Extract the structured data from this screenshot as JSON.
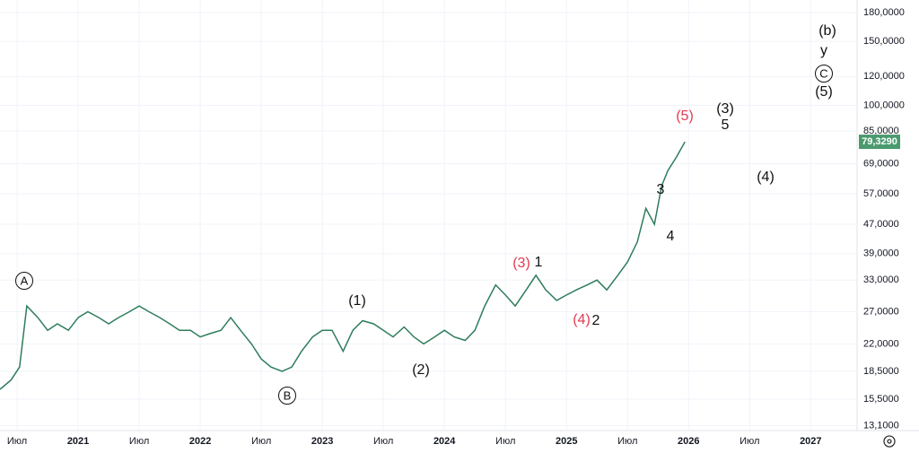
{
  "chart_data": {
    "type": "line",
    "log_scale": true,
    "x": [
      2020.36,
      2020.45,
      2020.52,
      2020.58,
      2020.67,
      2020.75,
      2020.83,
      2020.92,
      2021.0,
      2021.08,
      2021.17,
      2021.25,
      2021.33,
      2021.42,
      2021.5,
      2021.58,
      2021.67,
      2021.75,
      2021.83,
      2021.92,
      2022.0,
      2022.08,
      2022.17,
      2022.25,
      2022.33,
      2022.42,
      2022.5,
      2022.58,
      2022.67,
      2022.75,
      2022.83,
      2022.92,
      2023.0,
      2023.08,
      2023.17,
      2023.25,
      2023.33,
      2023.42,
      2023.5,
      2023.58,
      2023.67,
      2023.75,
      2023.83,
      2023.92,
      2024.0,
      2024.08,
      2024.17,
      2024.25,
      2024.33,
      2024.42,
      2024.5,
      2024.58,
      2024.67,
      2024.75,
      2024.83,
      2024.92,
      2025.0,
      2025.08,
      2025.17,
      2025.25,
      2025.33,
      2025.42,
      2025.5,
      2025.58,
      2025.65,
      2025.72,
      2025.78,
      2025.83,
      2025.9,
      2025.97
    ],
    "values": [
      16.5,
      17.5,
      19,
      28,
      26,
      24,
      25,
      24,
      26,
      27,
      26,
      25,
      26,
      27,
      28,
      27,
      26,
      25,
      24,
      24,
      23,
      23.5,
      24,
      26,
      24,
      22,
      20,
      19,
      18.5,
      19,
      21,
      23,
      24,
      24,
      21,
      24,
      25.5,
      25,
      24,
      23,
      24.5,
      23,
      22,
      23,
      24,
      23,
      22.5,
      24,
      28,
      32,
      30,
      28,
      31,
      34,
      31,
      29,
      30,
      31,
      32,
      33,
      31,
      34,
      37,
      42,
      52,
      47,
      60,
      66,
      72,
      79.329
    ],
    "value_labels": [
      null,
      null,
      null,
      null,
      null,
      null,
      null,
      null,
      null,
      null,
      null,
      null,
      null,
      null,
      null,
      null,
      null,
      null,
      null,
      null,
      null,
      null,
      null,
      null,
      null,
      null,
      null,
      null,
      null,
      null,
      null,
      null,
      null,
      null,
      null,
      null,
      null,
      null,
      null,
      null,
      null,
      null,
      null,
      null,
      null,
      null,
      null,
      null,
      null,
      null,
      null,
      null,
      null,
      null,
      null,
      null,
      null,
      null,
      null,
      null,
      null,
      null,
      null,
      null,
      null,
      null,
      null,
      null,
      null,
      "79,3290"
    ],
    "color": "#2e7d5b",
    "label_color": "#4a9a6e",
    "xlim": [
      2020.36,
      2027.38
    ],
    "xticks": [
      {
        "value": 2020.5,
        "label": "Июл"
      },
      2021,
      {
        "value": 2021.5,
        "label": "Июл"
      },
      2022,
      {
        "value": 2022.5,
        "label": "Июл"
      },
      2023,
      {
        "value": 2023.5,
        "label": "Июл"
      },
      2024,
      {
        "value": 2024.5,
        "label": "Июл"
      },
      2025,
      {
        "value": 2025.5,
        "label": "Июл"
      },
      2026,
      {
        "value": 2026.5,
        "label": "Июл"
      },
      2027
    ],
    "ylim": [
      12.7,
      195
    ],
    "yticks": [
      {
        "value": 180,
        "label": "180,0000"
      },
      {
        "value": 150,
        "label": "150,0000"
      },
      {
        "value": 120,
        "label": "120,0000"
      },
      {
        "value": 100,
        "label": "100,0000"
      },
      {
        "value": 85,
        "label": "85,0000"
      },
      {
        "value": 69,
        "label": "69,0000"
      },
      {
        "value": 57,
        "label": "57,0000"
      },
      {
        "value": 47,
        "label": "47,0000"
      },
      {
        "value": 39,
        "label": "39,0000"
      },
      {
        "value": 33,
        "label": "33,0000"
      },
      {
        "value": 27,
        "label": "27,0000"
      },
      {
        "value": 22,
        "label": "22,0000"
      },
      {
        "value": 18.5,
        "label": "18,5000"
      },
      {
        "value": 15.5,
        "label": "15,5000"
      },
      {
        "value": 13.1,
        "label": "13,1000"
      }
    ],
    "grid": true,
    "annotations": [
      {
        "text": "(b)",
        "color": "#111"
      },
      {
        "text": "y",
        "color": "#111"
      },
      {
        "text": "C",
        "color": "#111",
        "circled": true
      },
      {
        "text": "(5)",
        "color": "#111"
      },
      {
        "text": "(3)",
        "color": "#111"
      },
      {
        "text": "5",
        "color": "#111"
      },
      {
        "text": "(4)",
        "color": "#111"
      },
      {
        "text": "(5)",
        "color": "#e53950"
      },
      {
        "text": "3",
        "color": "#111"
      },
      {
        "text": "4",
        "color": "#111"
      },
      {
        "text": "(3)",
        "color": "#e53950"
      },
      {
        "text": "1",
        "color": "#111"
      },
      {
        "text": "(4)",
        "color": "#e53950"
      },
      {
        "text": "2",
        "color": "#111"
      },
      {
        "text": "(1)",
        "color": "#111"
      },
      {
        "text": "(2)",
        "color": "#111"
      },
      {
        "text": "A",
        "color": "#111",
        "circled": true
      },
      {
        "text": "B",
        "color": "#111",
        "circled": true
      }
    ]
  }
}
